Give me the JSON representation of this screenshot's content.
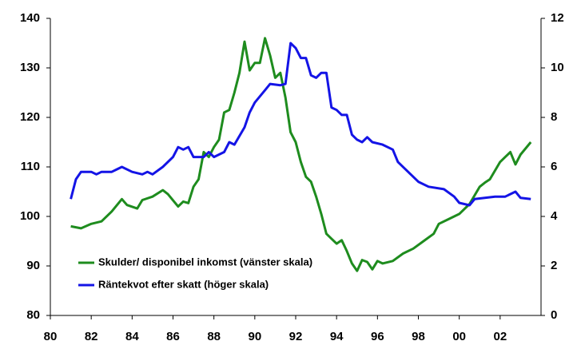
{
  "chart_data": {
    "type": "line",
    "xlim": [
      1980,
      2004
    ],
    "xticks": [
      {
        "value": 1980,
        "label": "80"
      },
      {
        "value": 1982,
        "label": "82"
      },
      {
        "value": 1984,
        "label": "84"
      },
      {
        "value": 1986,
        "label": "86"
      },
      {
        "value": 1988,
        "label": "88"
      },
      {
        "value": 1990,
        "label": "90"
      },
      {
        "value": 1992,
        "label": "92"
      },
      {
        "value": 1994,
        "label": "94"
      },
      {
        "value": 1996,
        "label": "96"
      },
      {
        "value": 1998,
        "label": "98"
      },
      {
        "value": 2000,
        "label": "00"
      },
      {
        "value": 2002,
        "label": "02"
      }
    ],
    "ylim": [
      80,
      140
    ],
    "yticks": [
      80,
      90,
      100,
      110,
      120,
      130,
      140
    ],
    "y2lim": [
      0,
      12
    ],
    "y2ticks": [
      0,
      2,
      4,
      6,
      8,
      10,
      12
    ],
    "legend": "lower left",
    "series": [
      {
        "name": "Skulder/ disponibel inkomst (vänster skala)",
        "color": "#1e8c1e",
        "axis": "y",
        "x": [
          1981.0,
          1981.5,
          1982.0,
          1982.5,
          1983.0,
          1983.5,
          1983.75,
          1984.25,
          1984.5,
          1985.0,
          1985.5,
          1985.75,
          1986.25,
          1986.5,
          1986.75,
          1987.0,
          1987.25,
          1987.5,
          1987.75,
          1988.0,
          1988.25,
          1988.5,
          1988.75,
          1989.0,
          1989.25,
          1989.5,
          1989.75,
          1990.0,
          1990.25,
          1990.5,
          1990.75,
          1991.0,
          1991.25,
          1991.5,
          1991.75,
          1992.0,
          1992.25,
          1992.5,
          1992.75,
          1993.0,
          1993.25,
          1993.5,
          1993.75,
          1994.0,
          1994.25,
          1994.5,
          1994.75,
          1995.0,
          1995.25,
          1995.5,
          1995.75,
          1996.0,
          1996.25,
          1996.75,
          1997.25,
          1997.75,
          1998.25,
          1998.75,
          1999.0,
          1999.5,
          2000.0,
          2000.5,
          2001.0,
          2001.25,
          2001.5,
          2002.0,
          2002.25,
          2002.5,
          2002.75,
          2003.0,
          2003.5
        ],
        "values": [
          98,
          97.6,
          98.5,
          99,
          101,
          103.5,
          102.3,
          101.6,
          103.3,
          104,
          105.3,
          104.5,
          102,
          103,
          102.7,
          106,
          107.5,
          113,
          112,
          114,
          115.5,
          121,
          121.5,
          125,
          129,
          135.3,
          129.5,
          131,
          131,
          136,
          132.5,
          128,
          129,
          124,
          117,
          115,
          111,
          108,
          107,
          104,
          100.5,
          96.5,
          95.5,
          94.5,
          95.2,
          93,
          90.5,
          89,
          91.2,
          90.8,
          89.3,
          91,
          90.5,
          91,
          92.5,
          93.5,
          95,
          96.5,
          98.5,
          99.5,
          100.5,
          102.5,
          106,
          106.8,
          107.5,
          111,
          112,
          113,
          110.5,
          112.5,
          115
        ]
      },
      {
        "name": "Räntekvot efter skatt (höger skala)",
        "color": "#1414e6",
        "axis": "y2",
        "x": [
          1981.0,
          1981.25,
          1981.5,
          1982.0,
          1982.25,
          1982.5,
          1983.0,
          1983.25,
          1983.5,
          1984.0,
          1984.5,
          1984.75,
          1985.0,
          1985.5,
          1986.0,
          1986.25,
          1986.5,
          1986.75,
          1987.0,
          1987.5,
          1987.75,
          1988.0,
          1988.5,
          1988.75,
          1989.0,
          1989.5,
          1989.75,
          1990.0,
          1990.5,
          1990.75,
          1991.25,
          1991.5,
          1991.75,
          1992.0,
          1992.25,
          1992.5,
          1992.75,
          1993.0,
          1993.25,
          1993.5,
          1993.75,
          1994.0,
          1994.25,
          1994.5,
          1994.75,
          1995.0,
          1995.25,
          1995.5,
          1995.75,
          1996.25,
          1996.75,
          1997.0,
          1997.5,
          1998.0,
          1998.5,
          1999.25,
          1999.75,
          2000.0,
          2000.5,
          2000.75,
          2001.25,
          2001.75,
          2002.25,
          2002.75,
          2003.0,
          2003.5
        ],
        "values": [
          4.7,
          5.5,
          5.8,
          5.8,
          5.7,
          5.8,
          5.8,
          5.9,
          6.0,
          5.8,
          5.7,
          5.8,
          5.7,
          6.0,
          6.4,
          6.8,
          6.7,
          6.8,
          6.4,
          6.4,
          6.6,
          6.4,
          6.6,
          7.0,
          6.9,
          7.6,
          8.2,
          8.6,
          9.1,
          9.35,
          9.3,
          9.35,
          11.0,
          10.8,
          10.4,
          10.4,
          9.7,
          9.6,
          9.8,
          9.8,
          8.4,
          8.3,
          8.1,
          8.1,
          7.3,
          7.1,
          7.0,
          7.2,
          7.0,
          6.9,
          6.7,
          6.2,
          5.8,
          5.4,
          5.2,
          5.1,
          4.8,
          4.55,
          4.45,
          4.7,
          4.75,
          4.8,
          4.8,
          5.0,
          4.75,
          4.7
        ]
      }
    ]
  }
}
